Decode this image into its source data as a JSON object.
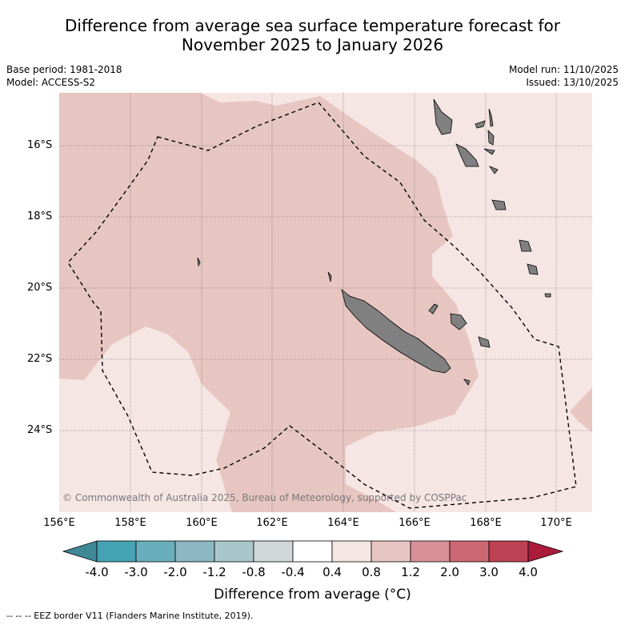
{
  "header": {
    "title_line1": "Difference from average sea surface temperature forecast for",
    "title_line2": "November 2025 to January 2026",
    "base_period": "Base period: 1981-2018",
    "model": "Model: ACCESS-S2",
    "model_run": "Model run: 11/10/2025",
    "issued": "Issued: 13/10/2025"
  },
  "map": {
    "lat_labels": [
      "16°S",
      "18°S",
      "20°S",
      "22°S",
      "24°S"
    ],
    "lon_labels": [
      "156°E",
      "158°E",
      "160°E",
      "162°E",
      "164°E",
      "166°E",
      "168°E",
      "170°E"
    ],
    "copyright": "© Commonwealth of Australia 2025, Bureau of Meteorology, supported by COSPPac",
    "colors": {
      "warm_0_4_to_0_8": "#f5e6e4",
      "warm_0_8_to_1_2": "#e7c6c1",
      "land": "#808080",
      "eez_border": "#000000"
    }
  },
  "colorbar": {
    "labels": [
      "-4.0",
      "-3.0",
      "-2.0",
      "-1.2",
      "-0.8",
      "-0.4",
      "0.4",
      "0.8",
      "1.2",
      "2.0",
      "3.0",
      "4.0"
    ],
    "colors": [
      "#3f8996",
      "#45a3b3",
      "#6aaebd",
      "#8cb8c3",
      "#a9c7cb",
      "#d2d8da",
      "#ffffff",
      "#f5e6e4",
      "#e7c6c1",
      "#d79196",
      "#cc6874",
      "#bd4254",
      "#aa1c3a"
    ],
    "title": "Difference from average (°C)"
  },
  "legend": {
    "eez": "--  --  -- EEZ border V11 (Flanders Marine Institute, 2019)."
  }
}
